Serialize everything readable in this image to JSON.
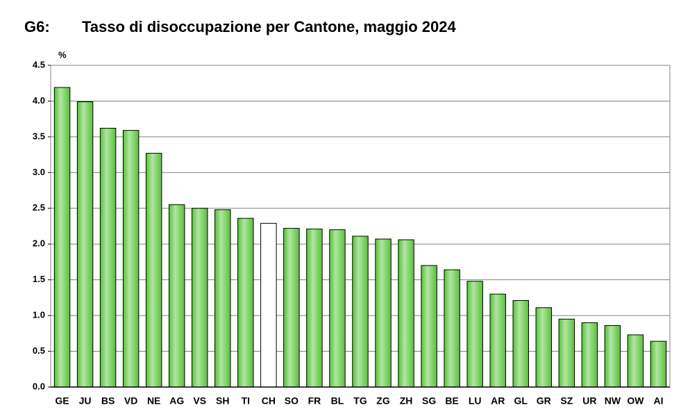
{
  "chart_data": {
    "type": "bar",
    "figure_label": "G6:",
    "title": "Tasso di disoccupazione per Cantone, maggio 2024",
    "y_label": "%",
    "categories": [
      "GE",
      "JU",
      "BS",
      "VD",
      "NE",
      "AG",
      "VS",
      "SH",
      "TI",
      "CH",
      "SO",
      "FR",
      "BL",
      "TG",
      "ZG",
      "ZH",
      "SG",
      "BE",
      "LU",
      "AR",
      "GL",
      "GR",
      "SZ",
      "UR",
      "NW",
      "OW",
      "AI"
    ],
    "values": [
      4.19,
      3.99,
      3.62,
      3.59,
      3.27,
      2.55,
      2.5,
      2.48,
      2.36,
      2.29,
      2.22,
      2.21,
      2.2,
      2.11,
      2.07,
      2.06,
      1.7,
      1.64,
      1.48,
      1.3,
      1.21,
      1.11,
      0.95,
      0.9,
      0.86,
      0.73,
      0.64
    ],
    "colors": [
      "#55c236",
      "#55c236",
      "#55c236",
      "#55c236",
      "#55c236",
      "#55c236",
      "#55c236",
      "#55c236",
      "#55c236",
      "#ffffff",
      "#55c236",
      "#55c236",
      "#55c236",
      "#55c236",
      "#55c236",
      "#55c236",
      "#55c236",
      "#55c236",
      "#55c236",
      "#55c236",
      "#55c236",
      "#55c236",
      "#55c236",
      "#55c236",
      "#55c236",
      "#55c236",
      "#55c236"
    ],
    "ylim": [
      0,
      4.5
    ],
    "yticks": [
      {
        "value": 0,
        "label": "0.0"
      },
      0.5,
      {
        "value": 1,
        "label": "1.0"
      },
      1.5,
      {
        "value": 2,
        "label": "2.0"
      },
      2.5,
      {
        "value": 3,
        "label": "3.0"
      },
      3.5,
      {
        "value": 4,
        "label": "4.0"
      },
      4.5
    ],
    "grid": true
  }
}
